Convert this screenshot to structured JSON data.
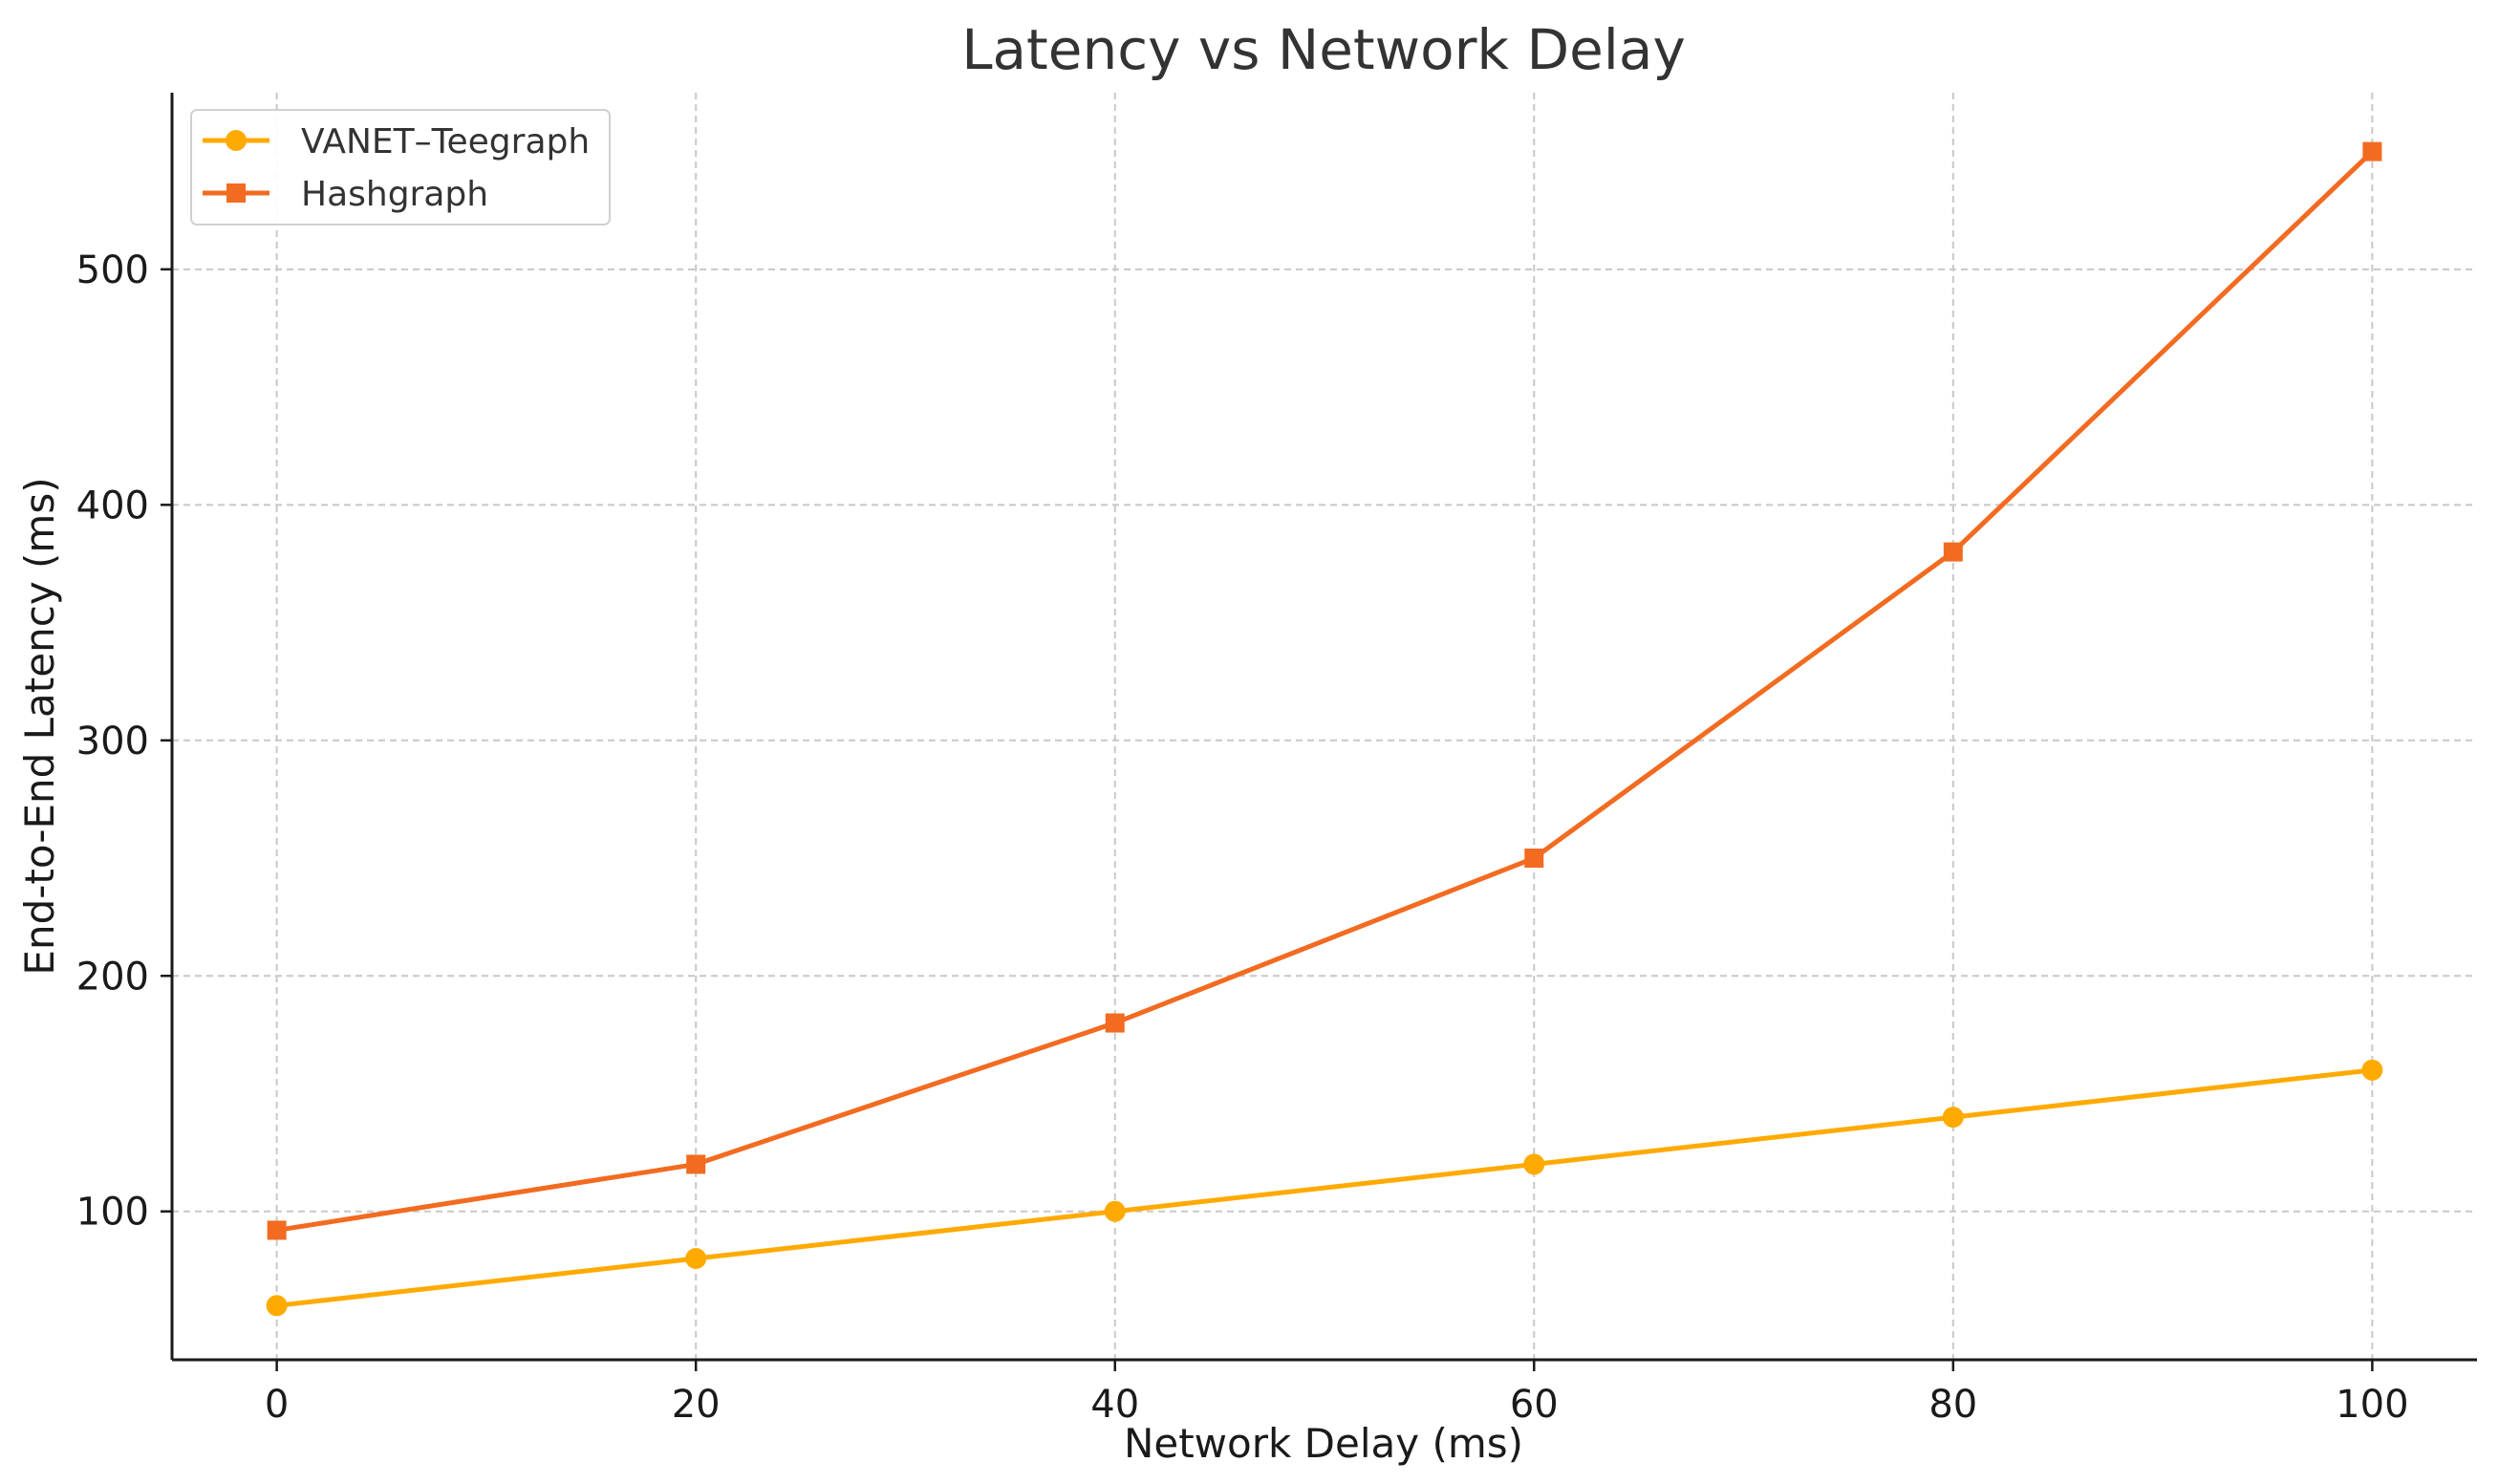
{
  "chart_data": {
    "type": "line",
    "title": "Latency vs Network Delay",
    "xlabel": "Network Delay (ms)",
    "ylabel": "End-to-End Latency (ms)",
    "x": [
      0,
      20,
      40,
      60,
      80,
      100
    ],
    "x_ticks": [
      "0",
      "20",
      "40",
      "60",
      "80",
      "100"
    ],
    "y_ticks": [
      "100",
      "200",
      "300",
      "400",
      "500"
    ],
    "xlim": [
      -5,
      105
    ],
    "ylim": [
      37,
      575
    ],
    "grid": true,
    "legend_position": "top-left",
    "series": [
      {
        "name": "VANET–Teegraph",
        "values": [
          60,
          80,
          100,
          120,
          140,
          160
        ],
        "color": "#FFAA00",
        "marker": "circle"
      },
      {
        "name": "Hashgraph",
        "values": [
          92,
          120,
          180,
          250,
          380,
          550
        ],
        "color": "#F26B21",
        "marker": "square"
      }
    ]
  }
}
